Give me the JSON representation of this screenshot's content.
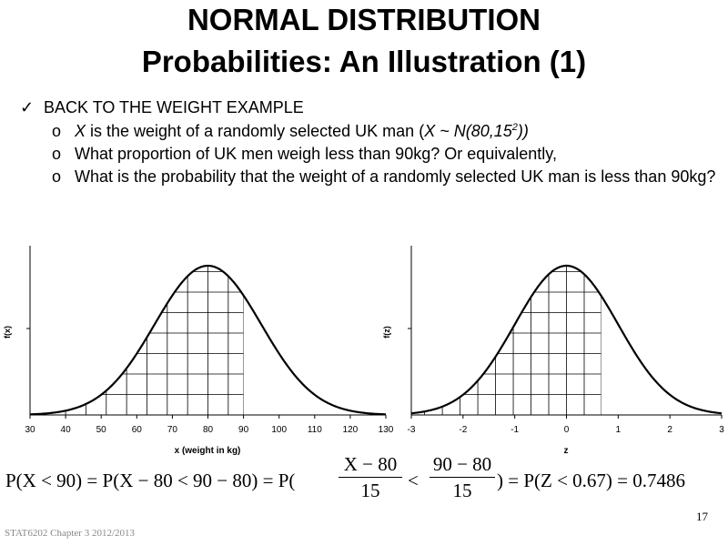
{
  "slide": {
    "title_line1": "NORMAL DISTRIBUTION",
    "title_line2": "Probabilities: An Illustration (1)",
    "bullet_main_marker": "✓",
    "bullet_main": "BACK TO THE WEIGHT EXAMPLE",
    "sub_marker": "o",
    "sub1_var": "X",
    "sub1_text": " is the weight of a randomly selected UK man (",
    "sub1_dist": "X ~ N(80,15",
    "sub1_sup": "2",
    "sub1_close": "))",
    "sub2": "What proportion of UK men weigh less than 90kg? Or equivalently,",
    "sub3": "What is the probability that the weight of a randomly selected UK man is less than 90kg?",
    "page_number": "17",
    "footer": "STAT6202 Chapter 3 2012/2013"
  },
  "chart_data": [
    {
      "type": "area",
      "xlabel": "x (weight in kg)",
      "ylabel": "f(x)",
      "x_ticks": [
        "30",
        "40",
        "50",
        "60",
        "70",
        "80",
        "90",
        "100",
        "110",
        "120",
        "130"
      ],
      "xlim": [
        30,
        130
      ],
      "mean": 80,
      "sd": 15,
      "shaded_below": 90
    },
    {
      "type": "area",
      "xlabel": "z",
      "ylabel": "f(z)",
      "x_ticks": [
        "-3",
        "-2",
        "-1",
        "0",
        "1",
        "2",
        "3"
      ],
      "xlim": [
        -3,
        3
      ],
      "mean": 0,
      "sd": 1,
      "shaded_below": 0.67
    }
  ],
  "formula": {
    "part1": "P(X < 90) = P(X − 80 < 90 − 80) = P(",
    "frac1_num": "X − 80",
    "frac1_den": "15",
    "lt": "<",
    "frac2_num": "90 − 80",
    "frac2_den": "15",
    "part2": ") = P(Z < 0.67) = 0.7486"
  }
}
